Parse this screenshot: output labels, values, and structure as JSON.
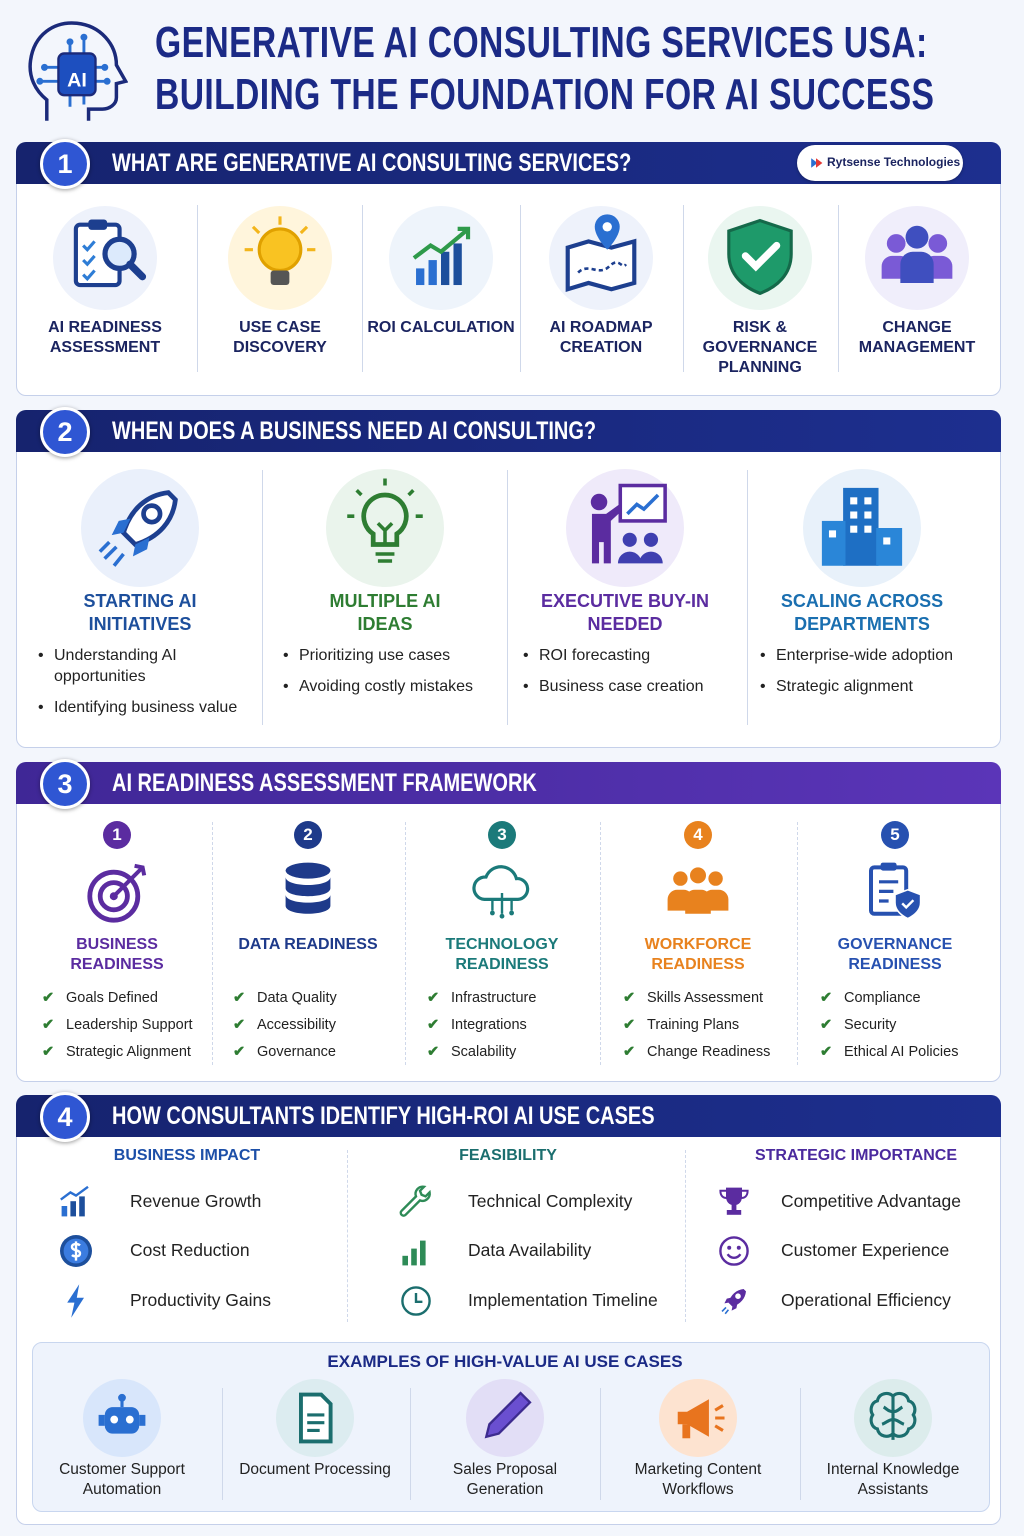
{
  "header": {
    "logo_text": "AI",
    "title": [
      "GENERATIVE AI CONSULTING SERVICES USA:",
      "BUILDING THE FOUNDATION FOR AI SUCCESS"
    ]
  },
  "section1": {
    "number": "1",
    "title": "WHAT ARE GENERATIVE AI CONSULTING SERVICES?",
    "brand": "Rytsense Technologies",
    "items": [
      "AI READINESS ASSESSMENT",
      "USE CASE DISCOVERY",
      "ROI CALCULATION",
      "AI ROADMAP CREATION",
      "RISK & GOVERNANCE PLANNING",
      "CHANGE MANAGEMENT"
    ]
  },
  "section2": {
    "number": "2",
    "title": "WHEN DOES A BUSINESS NEED AI CONSULTING?",
    "items": [
      {
        "title": "STARTING AI INITIATIVES",
        "color": "#1d4f9c",
        "points": [
          "Understanding AI opportunities",
          "Identifying business value"
        ]
      },
      {
        "title": "MULTIPLE AI IDEAS",
        "color": "#2e7d32",
        "points": [
          "Prioritizing use cases",
          "Avoiding costly mistakes"
        ]
      },
      {
        "title": "EXECUTIVE BUY-IN NEEDED",
        "color": "#5b2ca0",
        "points": [
          "ROI forecasting",
          "Business case creation"
        ]
      },
      {
        "title": "SCALING ACROSS DEPARTMENTS",
        "color": "#1a6fb0",
        "points": [
          "Enterprise-wide adoption",
          "Strategic alignment"
        ]
      }
    ]
  },
  "section3": {
    "number": "3",
    "title": "AI READINESS ASSESSMENT FRAMEWORK",
    "items": [
      {
        "number": "1",
        "title": "BUSINESS READINESS",
        "color": "#5b2ca0",
        "checks": [
          "Goals Defined",
          "Leadership Support",
          "Strategic Alignment"
        ]
      },
      {
        "number": "2",
        "title": "DATA READINESS",
        "color": "#1e3a8a",
        "checks": [
          "Data Quality",
          "Accessibility",
          "Governance"
        ]
      },
      {
        "number": "3",
        "title": "TECHNOLOGY READINESS",
        "color": "#1b7a7a",
        "checks": [
          "Infrastructure",
          "Integrations",
          "Scalability"
        ]
      },
      {
        "number": "4",
        "title": "WORKFORCE READINESS",
        "color": "#e8821e",
        "checks": [
          "Skills Assessment",
          "Training Plans",
          "Change Readiness"
        ]
      },
      {
        "number": "5",
        "title": "GOVERNANCE READINESS",
        "color": "#2751b0",
        "checks": [
          "Compliance",
          "Security",
          "Ethical AI Policies"
        ]
      }
    ]
  },
  "section4": {
    "number": "4",
    "title": "HOW CONSULTANTS IDENTIFY HIGH-ROI AI USE CASES",
    "columns": [
      {
        "heading": "BUSINESS IMPACT",
        "color": "#1c4fa8",
        "items": [
          "Revenue Growth",
          "Cost Reduction",
          "Productivity Gains"
        ]
      },
      {
        "heading": "FEASIBILITY",
        "color": "#1b6e6e",
        "items": [
          "Technical Complexity",
          "Data Availability",
          "Implementation Timeline"
        ]
      },
      {
        "heading": "STRATEGIC IMPORTANCE",
        "color": "#4b2a9e",
        "items": [
          "Competitive Advantage",
          "Customer Experience",
          "Operational Efficiency"
        ]
      }
    ],
    "examples": {
      "title": "EXAMPLES OF HIGH-VALUE AI USE CASES",
      "items": [
        "Customer Support Automation",
        "Document Processing",
        "Sales Proposal Generation",
        "Marketing Content Workflows",
        "Internal Knowledge Assistants"
      ]
    }
  }
}
